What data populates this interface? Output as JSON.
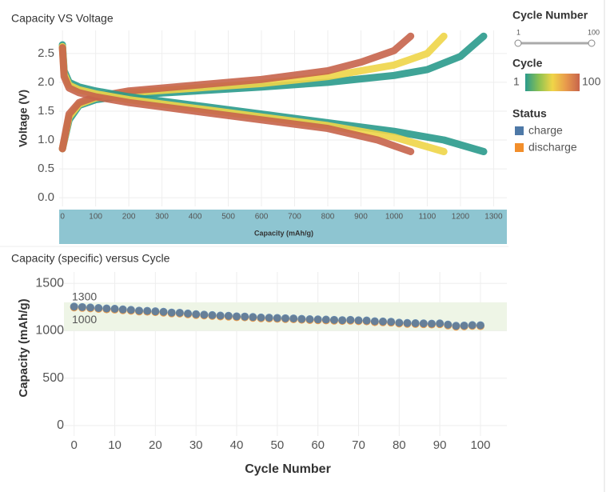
{
  "filter": {
    "title": "Cycle Number",
    "min": 1,
    "max": 100
  },
  "chart_data": [
    {
      "type": "line",
      "title": "Capacity VS Voltage",
      "x_label": "Capacity (mAh/g)",
      "y_label": "Voltage (V)",
      "xlim": [
        -10,
        1340
      ],
      "ylim": [
        -0.15,
        2.9
      ],
      "xticks": [
        0,
        100,
        200,
        300,
        400,
        500,
        600,
        700,
        800,
        900,
        1000,
        1100,
        1200,
        1300
      ],
      "yticks": [
        {
          "value": 0,
          "label": "0.0"
        },
        0.5,
        {
          "value": 1,
          "label": "1.0"
        },
        1.5,
        {
          "value": 2,
          "label": "2.0"
        },
        2.5
      ],
      "grid": true,
      "color_legend": {
        "title": "Cycle",
        "min": 1,
        "max": 100,
        "colors": [
          "#2a9a8c",
          "#8cc152",
          "#f0d548",
          "#e89a4c",
          "#c7644b"
        ]
      },
      "series": [
        {
          "cycle": 1,
          "x": [
            0,
            20,
            50,
            100,
            200,
            400,
            600,
            800,
            1000,
            1100,
            1200,
            1270
          ],
          "values": [
            0.85,
            1.35,
            1.6,
            1.7,
            1.78,
            1.85,
            1.92,
            2.0,
            2.12,
            2.22,
            2.45,
            2.8
          ]
        },
        {
          "cycle": 50,
          "x": [
            0,
            20,
            50,
            100,
            200,
            400,
            600,
            800,
            1000,
            1100,
            1150
          ],
          "values": [
            0.85,
            1.4,
            1.62,
            1.73,
            1.82,
            1.9,
            1.98,
            2.1,
            2.3,
            2.5,
            2.8
          ]
        },
        {
          "cycle": 100,
          "x": [
            0,
            20,
            50,
            100,
            200,
            400,
            600,
            800,
            900,
            1000,
            1050
          ],
          "values": [
            0.85,
            1.45,
            1.65,
            1.75,
            1.85,
            1.95,
            2.05,
            2.2,
            2.35,
            2.55,
            2.8
          ]
        },
        {
          "cycle": 1,
          "x": [
            0,
            5,
            20,
            50,
            100,
            200,
            400,
            600,
            800,
            1000,
            1150,
            1270
          ],
          "values": [
            2.65,
            2.2,
            2.0,
            1.92,
            1.85,
            1.75,
            1.6,
            1.45,
            1.3,
            1.15,
            1.0,
            0.8
          ]
        },
        {
          "cycle": 50,
          "x": [
            0,
            5,
            20,
            50,
            100,
            200,
            400,
            600,
            800,
            1000,
            1150
          ],
          "values": [
            2.62,
            2.15,
            1.95,
            1.87,
            1.8,
            1.7,
            1.55,
            1.4,
            1.25,
            1.05,
            0.8
          ]
        },
        {
          "cycle": 100,
          "x": [
            0,
            5,
            20,
            50,
            100,
            200,
            400,
            600,
            800,
            950,
            1050
          ],
          "values": [
            2.6,
            2.1,
            1.9,
            1.82,
            1.75,
            1.65,
            1.5,
            1.35,
            1.2,
            1.0,
            0.8
          ]
        }
      ]
    },
    {
      "type": "scatter",
      "title": "Capacity (specific) versus Cycle",
      "x_label": "Cycle Number",
      "y_label": "Capacity (mAh/g)",
      "xlim": [
        -2.5,
        106.5
      ],
      "ylim": [
        -110,
        1620
      ],
      "xticks": [
        0,
        10,
        20,
        30,
        40,
        50,
        60,
        70,
        80,
        90,
        100
      ],
      "yticks": [
        0,
        500,
        1000,
        1500
      ],
      "grid": true,
      "reference_band": {
        "from": 1000,
        "to": 1300
      },
      "legend_title": "Status",
      "x": [
        0,
        2,
        4,
        6,
        8,
        10,
        12,
        14,
        16,
        18,
        20,
        22,
        24,
        26,
        28,
        30,
        32,
        34,
        36,
        38,
        40,
        42,
        44,
        46,
        48,
        50,
        52,
        54,
        56,
        58,
        60,
        62,
        64,
        66,
        68,
        70,
        72,
        74,
        76,
        78,
        80,
        82,
        84,
        86,
        88,
        90,
        92,
        94,
        96,
        98,
        100
      ],
      "series": [
        {
          "name": "discharge",
          "color": "#f28e2b",
          "values": [
            1247,
            1242,
            1237,
            1232,
            1227,
            1224,
            1217,
            1212,
            1204,
            1202,
            1197,
            1192,
            1184,
            1182,
            1174,
            1167,
            1162,
            1157,
            1152,
            1150,
            1144,
            1142,
            1137,
            1132,
            1130,
            1127,
            1124,
            1122,
            1117,
            1114,
            1112,
            1110,
            1107,
            1104,
            1107,
            1102,
            1100,
            1092,
            1090,
            1087,
            1077,
            1074,
            1072,
            1070,
            1067,
            1070,
            1057,
            1044,
            1047,
            1052,
            1050
          ]
        },
        {
          "name": "charge",
          "color": "#4e79a7",
          "values": [
            1255,
            1250,
            1245,
            1240,
            1235,
            1232,
            1225,
            1220,
            1212,
            1210,
            1205,
            1200,
            1192,
            1190,
            1182,
            1175,
            1170,
            1165,
            1160,
            1158,
            1152,
            1150,
            1145,
            1140,
            1138,
            1135,
            1132,
            1130,
            1125,
            1122,
            1120,
            1118,
            1115,
            1112,
            1115,
            1110,
            1108,
            1100,
            1098,
            1095,
            1085,
            1082,
            1080,
            1078,
            1075,
            1078,
            1065,
            1052,
            1055,
            1060,
            1058
          ]
        }
      ]
    }
  ]
}
